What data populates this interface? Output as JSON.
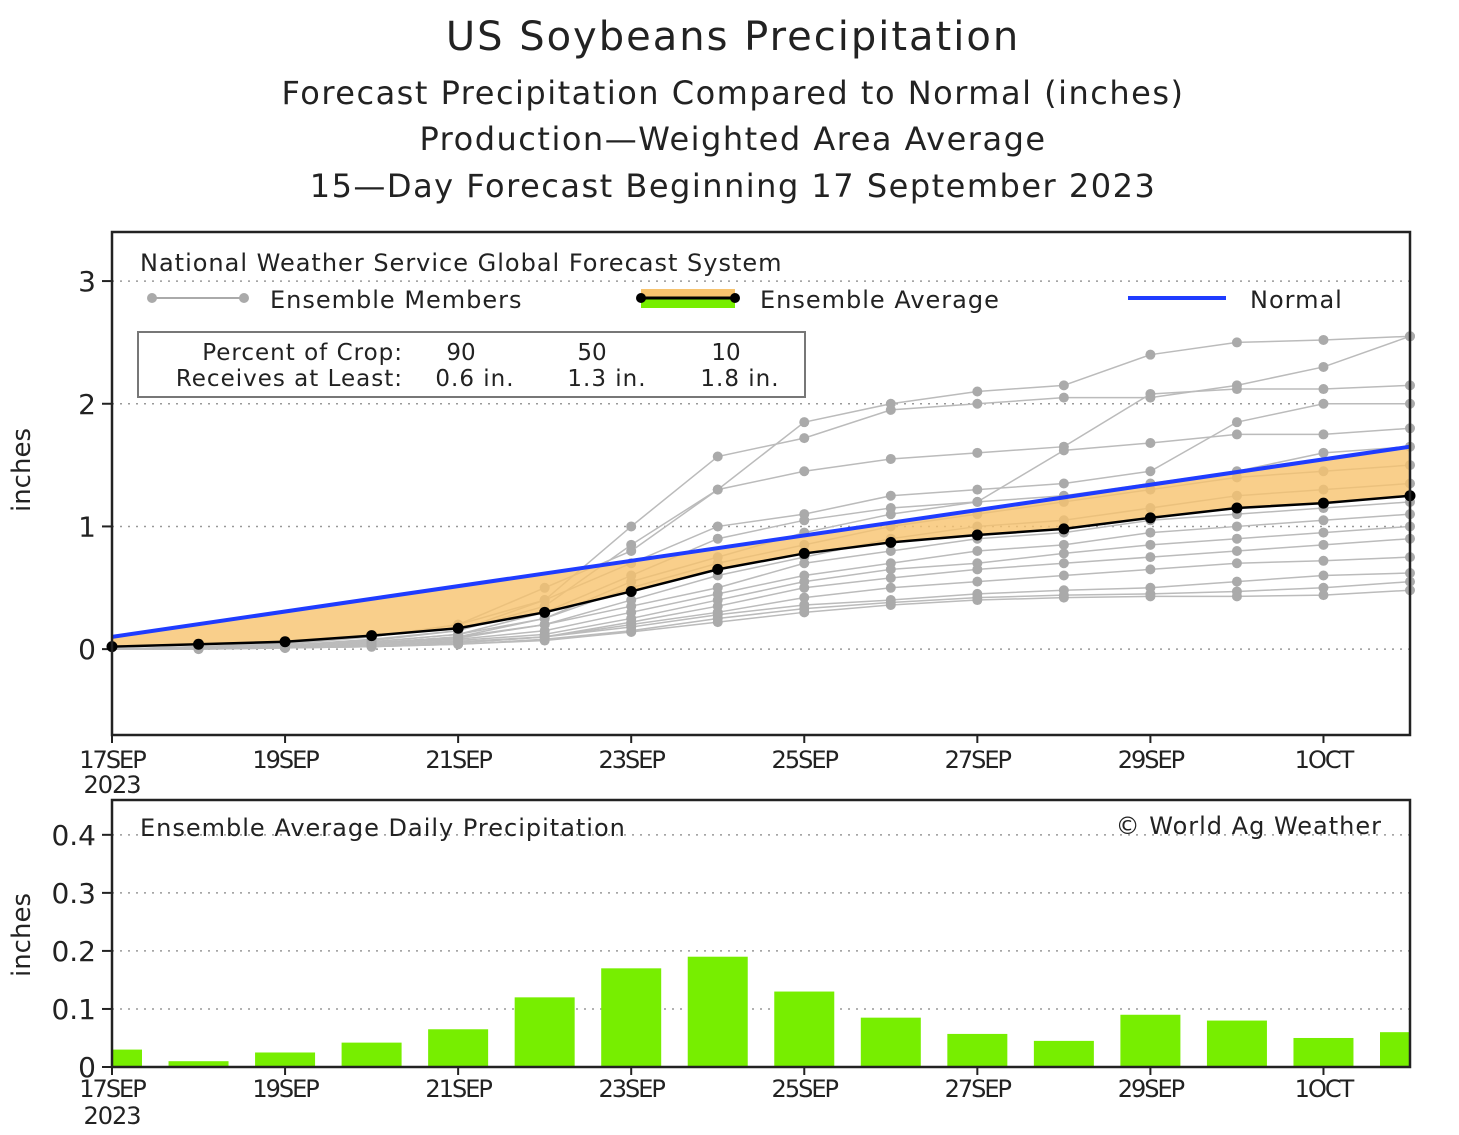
{
  "title": "US Soybeans Precipitation",
  "subtitles": [
    "Forecast Precipitation Compared to Normal (inches)",
    "Production—Weighted Area Average",
    "15—Day Forecast Beginning 17 September 2023"
  ],
  "colors": {
    "normal": "#1f3cff",
    "band": "#f7c36e",
    "bars": "#77ee00",
    "members": "#aaaaaa",
    "average": "#000000"
  },
  "chart_data": [
    {
      "type": "line",
      "source_label": "National Weather Service Global Forecast System",
      "legend": {
        "members": "Ensemble Members",
        "average": "Ensemble Average",
        "normal": "Normal",
        "placement": "top"
      },
      "crop_box": {
        "row1_label": "Percent of Crop:",
        "row2_label": "Receives at Least:",
        "percents": [
          "90",
          "50",
          "10"
        ],
        "amounts": [
          "0.6 in.",
          "1.3 in.",
          "1.8 in."
        ]
      },
      "ylabel": "inches",
      "ylim": [
        -0.7,
        3.4
      ],
      "yticks": [
        "0",
        "1",
        "2",
        "3"
      ],
      "xticks": [
        "17SEP",
        "19SEP",
        "21SEP",
        "23SEP",
        "25SEP",
        "27SEP",
        "29SEP",
        "1OCT"
      ],
      "x_year": "2023",
      "x": [
        "17SEP",
        "18SEP",
        "19SEP",
        "20SEP",
        "21SEP",
        "22SEP",
        "23SEP",
        "24SEP",
        "25SEP",
        "26SEP",
        "27SEP",
        "28SEP",
        "29SEP",
        "30SEP",
        "1OCT",
        "2OCT"
      ],
      "normal": [
        0.1,
        0.2,
        0.31,
        0.41,
        0.51,
        0.62,
        0.72,
        0.82,
        0.93,
        1.03,
        1.13,
        1.24,
        1.34,
        1.44,
        1.55,
        1.65
      ],
      "ensemble_average": [
        0.02,
        0.04,
        0.06,
        0.11,
        0.17,
        0.3,
        0.47,
        0.65,
        0.78,
        0.87,
        0.93,
        0.98,
        1.07,
        1.15,
        1.19,
        1.25
      ],
      "members": [
        [
          0,
          0.02,
          0.05,
          0.1,
          0.2,
          0.5,
          0.8,
          1.3,
          1.85,
          2.0,
          2.1,
          2.15,
          2.4,
          2.5,
          2.52,
          2.55
        ],
        [
          0,
          0.02,
          0.04,
          0.1,
          0.2,
          0.4,
          1.0,
          1.57,
          1.72,
          1.95,
          2.0,
          2.05,
          2.05,
          2.15,
          2.3,
          2.55
        ],
        [
          0,
          0.01,
          0.03,
          0.08,
          0.15,
          0.35,
          0.85,
          1.3,
          1.45,
          1.55,
          1.6,
          1.65,
          2.08,
          2.12,
          2.12,
          2.15
        ],
        [
          0,
          0.01,
          0.03,
          0.07,
          0.15,
          0.4,
          0.7,
          1.0,
          1.1,
          1.25,
          1.3,
          1.35,
          1.45,
          1.85,
          2.0,
          2.0
        ],
        [
          0,
          0.01,
          0.03,
          0.06,
          0.12,
          0.3,
          0.6,
          0.9,
          1.05,
          1.15,
          1.2,
          1.62,
          1.68,
          1.75,
          1.75,
          1.8
        ],
        [
          0,
          0.01,
          0.02,
          0.06,
          0.12,
          0.25,
          0.55,
          0.75,
          0.95,
          1.1,
          1.2,
          1.25,
          1.35,
          1.45,
          1.6,
          1.65
        ],
        [
          0,
          0.01,
          0.02,
          0.05,
          0.1,
          0.25,
          0.5,
          0.7,
          0.85,
          1.0,
          1.1,
          1.2,
          1.3,
          1.4,
          1.45,
          1.5
        ],
        [
          0,
          0.01,
          0.02,
          0.05,
          0.1,
          0.2,
          0.4,
          0.6,
          0.75,
          0.9,
          1.0,
          1.05,
          1.15,
          1.25,
          1.3,
          1.35
        ],
        [
          0,
          0.01,
          0.02,
          0.04,
          0.09,
          0.2,
          0.35,
          0.5,
          0.7,
          0.8,
          0.9,
          0.95,
          1.05,
          1.1,
          1.15,
          1.2
        ],
        [
          0,
          0.01,
          0.02,
          0.04,
          0.08,
          0.15,
          0.3,
          0.45,
          0.6,
          0.7,
          0.8,
          0.85,
          0.95,
          1.0,
          1.05,
          1.1
        ],
        [
          0,
          0.01,
          0.02,
          0.03,
          0.07,
          0.12,
          0.25,
          0.4,
          0.55,
          0.65,
          0.7,
          0.78,
          0.85,
          0.9,
          0.95,
          1.0
        ],
        [
          0,
          0.01,
          0.02,
          0.03,
          0.06,
          0.1,
          0.22,
          0.35,
          0.5,
          0.58,
          0.65,
          0.7,
          0.75,
          0.8,
          0.85,
          0.9
        ],
        [
          0,
          0.01,
          0.01,
          0.03,
          0.05,
          0.1,
          0.2,
          0.3,
          0.42,
          0.5,
          0.55,
          0.6,
          0.65,
          0.7,
          0.72,
          0.75
        ],
        [
          0,
          0.01,
          0.01,
          0.02,
          0.05,
          0.1,
          0.18,
          0.28,
          0.36,
          0.4,
          0.45,
          0.48,
          0.5,
          0.55,
          0.6,
          0.62
        ],
        [
          0,
          0.0,
          0.01,
          0.02,
          0.04,
          0.08,
          0.15,
          0.25,
          0.33,
          0.38,
          0.42,
          0.44,
          0.45,
          0.47,
          0.5,
          0.55
        ],
        [
          0,
          0.0,
          0.01,
          0.02,
          0.04,
          0.07,
          0.14,
          0.22,
          0.3,
          0.36,
          0.4,
          0.42,
          0.43,
          0.43,
          0.44,
          0.48
        ]
      ],
      "grid": "dotted horizontal"
    },
    {
      "type": "bar",
      "title": "Ensemble Average Daily Precipitation",
      "copyright": "© World Ag Weather",
      "ylabel": "inches",
      "ylim": [
        0,
        0.46
      ],
      "yticks": [
        "0",
        "0.1",
        "0.2",
        "0.3",
        "0.4"
      ],
      "xticks": [
        "17SEP",
        "19SEP",
        "21SEP",
        "23SEP",
        "25SEP",
        "27SEP",
        "29SEP",
        "1OCT"
      ],
      "x_year": "2023",
      "values": [
        0.03,
        0.01,
        0.025,
        0.042,
        0.065,
        0.12,
        0.17,
        0.19,
        0.13,
        0.085,
        0.057,
        0.045,
        0.09,
        0.08,
        0.05,
        0.06
      ]
    }
  ]
}
